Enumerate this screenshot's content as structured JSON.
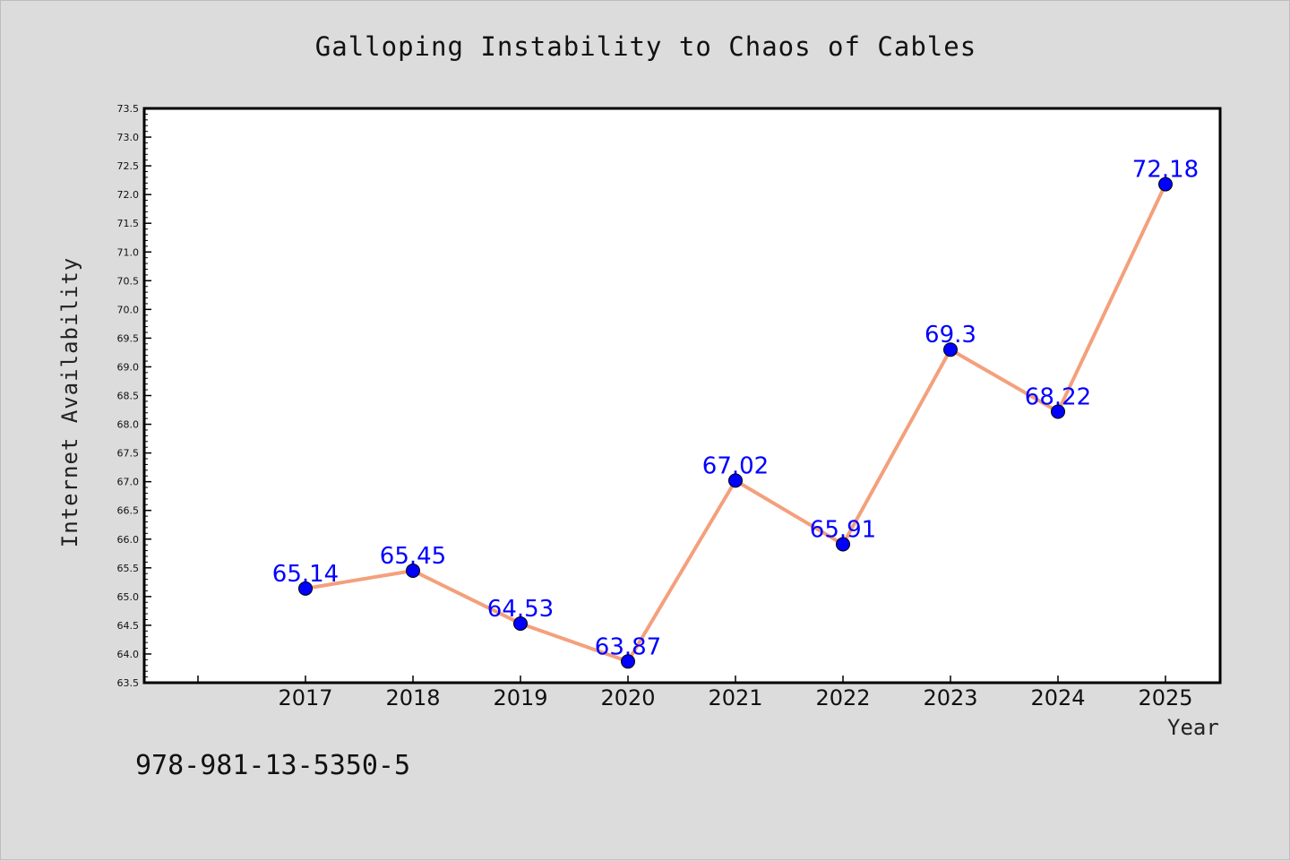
{
  "chart_data": {
    "type": "line",
    "title": "Galloping Instability to Chaos of Cables",
    "xlabel": "Year",
    "ylabel": "Internet Availability",
    "x": [
      "2017",
      "2018",
      "2019",
      "2020",
      "2021",
      "2022",
      "2023",
      "2024",
      "2025"
    ],
    "series": [
      {
        "values": [
          65.14,
          65.45,
          64.53,
          63.87,
          67.02,
          65.91,
          69.3,
          68.22,
          72.18
        ],
        "labels": [
          "65.14",
          "65.45",
          "64.53",
          "63.87",
          "67.02",
          "65.91",
          "69.3",
          "68.22",
          "72.18"
        ],
        "line_color": "#f4a07c",
        "marker_color": "#0000ff"
      }
    ],
    "ylim": [
      63.5,
      73.5
    ],
    "yticks": [
      "63.5",
      "64.0",
      "64.5",
      "65.0",
      "65.5",
      "66.0",
      "66.5",
      "67.0",
      "67.5",
      "68.0",
      "68.5",
      "69.0",
      "69.5",
      "70.0",
      "70.5",
      "71.0",
      "71.5",
      "72.0",
      "72.5",
      "73.0",
      "73.5"
    ],
    "grid": false,
    "legend": "none",
    "plot_background": "#ffffff",
    "page_background": "#dcdcdc"
  },
  "footnote": "978-981-13-5350-5"
}
